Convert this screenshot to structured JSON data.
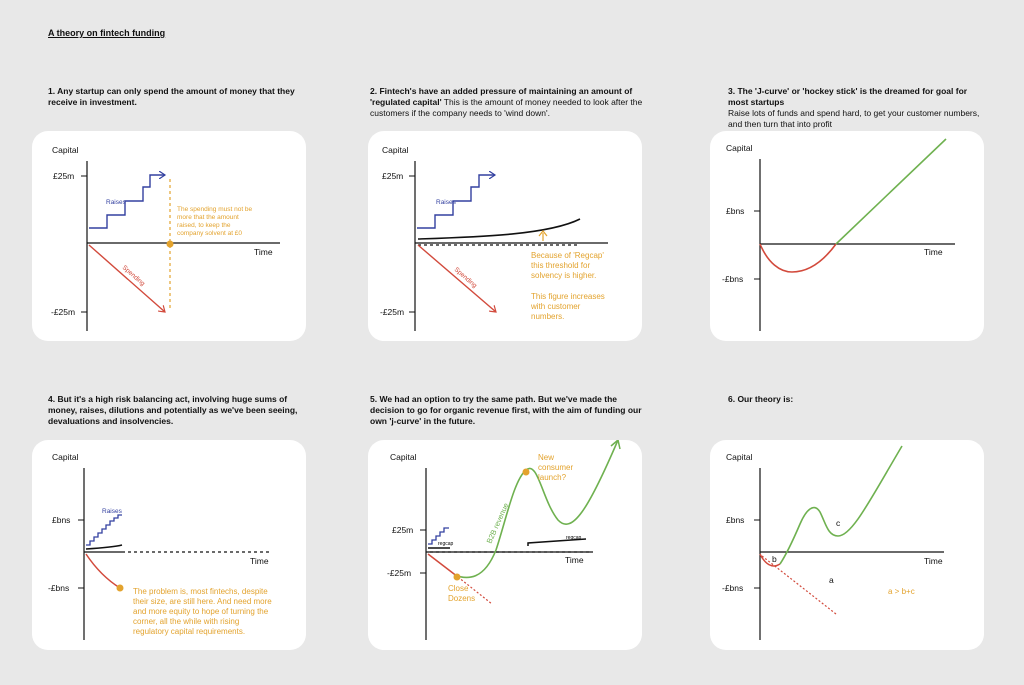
{
  "page_title": "A theory on fintech funding",
  "colors": {
    "raises": "#3340a0",
    "spending": "#d24a3c",
    "note": "#e3a32e",
    "growth": "#6fb150",
    "axis": "#111111",
    "card": "#ffffff",
    "background": "#e8e8e8"
  },
  "panels": [
    {
      "heading_bold": "1.  Any startup can only spend the amount of money that they receive in investment.",
      "heading_rest": "",
      "y_label": "Capital",
      "x_label": "Time",
      "tick_top": "£25m",
      "tick_bottom": "-£25m",
      "raises_label": "Raises",
      "spending_label": "Spending",
      "note": [
        "The spending must not be",
        "more that the amount",
        "raised, to keep the",
        "company solvent at £0"
      ]
    },
    {
      "heading_bold": "2. Fintech's have an added pressure of maintaining an amount of 'regulated capital'",
      "heading_rest": " This is the amount of money needed to look after the customers if the company needs to 'wind down'.",
      "y_label": "Capital",
      "x_label": "Time",
      "tick_top": "£25m",
      "tick_bottom": "-£25m",
      "raises_label": "Raises",
      "spending_label": "Spending",
      "note_1": [
        "Because of 'Regcap'",
        "this threshold for",
        "solvency is higher."
      ],
      "note_2": [
        "This figure increases",
        "with customer",
        "numbers."
      ]
    },
    {
      "heading_bold": "3. The 'J-curve' or 'hockey stick' is the dreamed for goal for most startups",
      "heading_rest": "Raise lots of funds and spend hard, to get your customer numbers, and then turn that into profit",
      "y_label": "Capital",
      "x_label": "Time",
      "tick_top": "£bns",
      "tick_bottom": "-£bns"
    },
    {
      "heading_bold": "4. But it's a high risk balancing act, involving huge sums of money, raises, dilutions and potentially as we've been seeing, devaluations and insolvencies.",
      "heading_rest": "",
      "y_label": "Capital",
      "x_label": "Time",
      "tick_top": "£bns",
      "tick_bottom": "-£bns",
      "raises_label": "Raises",
      "note": [
        "The problem is, most fintechs, despite",
        "their size, are still here. And need more",
        "and more equity to hope of turning the",
        "corner, all the while with rising",
        "regulatory capital requirements."
      ]
    },
    {
      "heading_bold": "5. We had an option to try the same path. But we've made the decision to go for organic revenue first, with the aim of funding our own 'j-curve' in the future.",
      "heading_rest": "",
      "y_label": "Capital",
      "x_label": "Time",
      "tick_top": "£25m",
      "tick_bottom": "-£25m",
      "regcap_label": "regcap",
      "b2b_label": "B2B revenue",
      "launch_note": [
        "New",
        "consumer",
        "launch?"
      ],
      "close_note": [
        "Close",
        "Dozens"
      ]
    },
    {
      "heading_bold": "6. Our theory is:",
      "heading_rest": "",
      "y_label": "Capital",
      "x_label": "Time",
      "tick_top": "£bns",
      "tick_bottom": "-£bns",
      "label_a": "a",
      "label_b": "b",
      "label_c": "c",
      "formula": "a > b+c"
    }
  ]
}
